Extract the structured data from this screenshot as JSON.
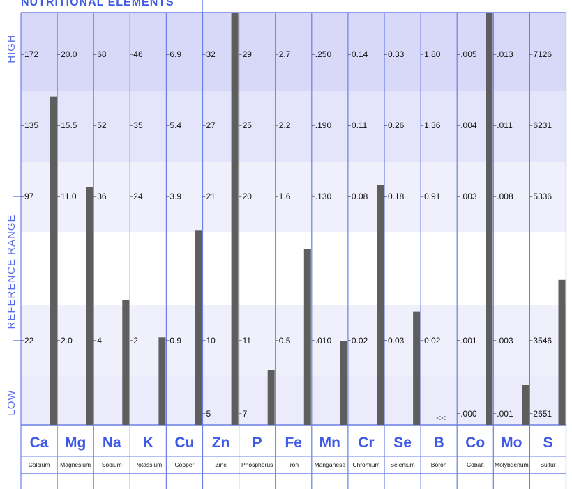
{
  "chart_data": {
    "type": "bar",
    "title": "NUTRITIONAL ELEMENTS",
    "ylabels": {
      "high": "HIGH",
      "reference": "REFERENCE RANGE",
      "low": "LOW"
    },
    "note": "<<",
    "elements": [
      {
        "symbol": "Ca",
        "name": "Calcium",
        "ticks": [
          "172",
          "135",
          "97",
          "22"
        ],
        "value": 150
      },
      {
        "symbol": "Mg",
        "name": "Magnesium",
        "ticks": [
          "20.0",
          "15.5",
          "11.0",
          "2.0"
        ],
        "value": 11.6
      },
      {
        "symbol": "Na",
        "name": "Sodium",
        "ticks": [
          "68",
          "52",
          "36",
          "4"
        ],
        "value": 13
      },
      {
        "symbol": "K",
        "name": "Potassium",
        "ticks": [
          "46",
          "35",
          "24",
          "2"
        ],
        "value": 2.5
      },
      {
        "symbol": "Cu",
        "name": "Copper",
        "ticks": [
          "6.9",
          "5.4",
          "3.9",
          "0.9"
        ],
        "value": 3.2
      },
      {
        "symbol": "Zn",
        "name": "Zinc",
        "ticks": [
          "32",
          "27",
          "21",
          "10",
          "5"
        ],
        "value": 42
      },
      {
        "symbol": "P",
        "name": "Phosphorus",
        "ticks": [
          "29",
          "25",
          "20",
          "11",
          "7"
        ],
        "value": 9.4
      },
      {
        "symbol": "Fe",
        "name": "Iron",
        "ticks": [
          "2.7",
          "2.2",
          "1.6",
          "0.5"
        ],
        "value": 1.2
      },
      {
        "symbol": "Mn",
        "name": "Manganese",
        "ticks": [
          ".250",
          ".190",
          ".130",
          ".010"
        ],
        "value": 0.01
      },
      {
        "symbol": "Cr",
        "name": "Chromium",
        "ticks": [
          "0.14",
          "0.11",
          "0.08",
          "0.02"
        ],
        "value": 0.085
      },
      {
        "symbol": "Se",
        "name": "Selenium",
        "ticks": [
          "0.33",
          "0.26",
          "0.18",
          "0.03"
        ],
        "value": 0.06
      },
      {
        "symbol": "B",
        "name": "Boron",
        "ticks": [
          "1.80",
          "1.36",
          "0.91",
          "0.02",
          "<<"
        ],
        "value": null
      },
      {
        "symbol": "Co",
        "name": "Cobalt",
        "ticks": [
          ".005",
          ".004",
          ".003",
          ".001",
          ".000"
        ],
        "value": 0.009
      },
      {
        "symbol": "Mo",
        "name": "Molybdenum",
        "ticks": [
          ".013",
          ".011",
          ".008",
          ".003",
          ".001"
        ],
        "value": 0.0018
      },
      {
        "symbol": "S",
        "name": "Sulfur",
        "ticks": [
          "7126",
          "6231",
          "5336",
          "3546",
          "2651"
        ],
        "value": 4300
      }
    ]
  },
  "colors": {
    "band_top": "#d8d8f8",
    "band_mid": "#e4e4fa",
    "band_light": "#f0f0fc",
    "band_white": "#ffffff",
    "band_bottom": "#ebebfb",
    "grid": "#6b7fe8",
    "bar": "#5e5e5e",
    "symbol": "#3e5ae6"
  }
}
